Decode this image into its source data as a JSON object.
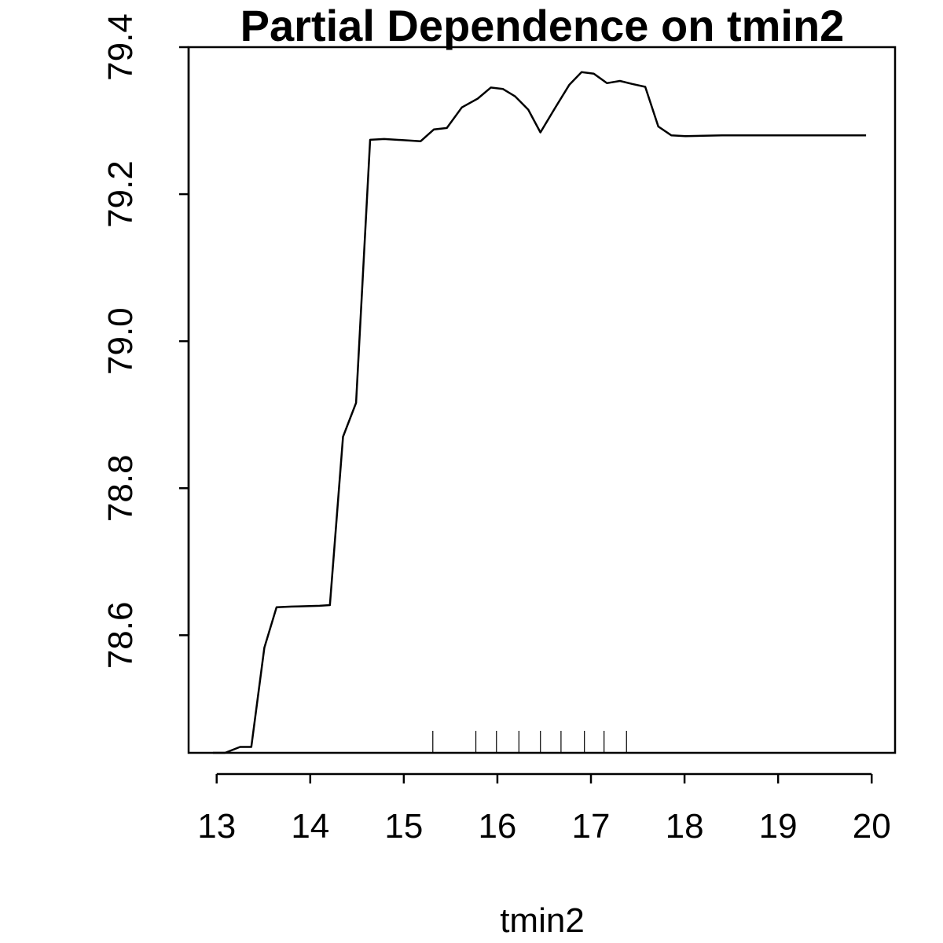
{
  "chart_data": {
    "type": "line",
    "title": "Partial Dependence on tmin2",
    "xlabel": "tmin2",
    "ylabel": "",
    "xlim": [
      12.7,
      20.25
    ],
    "ylim": [
      78.44,
      79.4
    ],
    "x_ticks": [
      13,
      14,
      15,
      16,
      17,
      18,
      19,
      20
    ],
    "x_tick_labels": [
      "13",
      "14",
      "15",
      "16",
      "17",
      "18",
      "19",
      "20"
    ],
    "y_ticks": [
      78.6,
      78.8,
      79.0,
      79.2,
      79.4
    ],
    "y_tick_labels": [
      "78.6",
      "78.8",
      "79.0",
      "79.2",
      "79.4"
    ],
    "grid": false,
    "legend": "none",
    "series": [
      {
        "x": [
          12.96,
          13.09,
          13.25,
          13.37,
          13.51,
          13.64,
          13.8,
          14.1,
          14.21,
          14.35,
          14.49,
          14.64,
          14.79,
          15.18,
          15.32,
          15.46,
          15.62,
          15.79,
          15.93,
          16.06,
          16.19,
          16.33,
          16.46,
          16.61,
          16.77,
          16.9,
          17.03,
          17.17,
          17.31,
          17.44,
          17.58,
          17.72,
          17.86,
          18.01,
          18.4,
          18.8,
          19.2,
          19.6,
          19.94
        ],
        "y": [
          78.44,
          78.44,
          78.448,
          78.448,
          78.583,
          78.638,
          78.639,
          78.64,
          78.641,
          78.87,
          78.916,
          79.274,
          79.275,
          79.272,
          79.288,
          79.29,
          79.318,
          79.33,
          79.345,
          79.343,
          79.333,
          79.315,
          79.284,
          79.316,
          79.349,
          79.366,
          79.364,
          79.351,
          79.354,
          79.35,
          79.346,
          79.292,
          79.28,
          79.279,
          79.28,
          79.28,
          79.28,
          79.28,
          79.28
        ]
      }
    ],
    "rug_x": [
      15.31,
      15.77,
      15.99,
      16.23,
      16.46,
      16.68,
      16.93,
      17.14,
      17.38
    ]
  }
}
